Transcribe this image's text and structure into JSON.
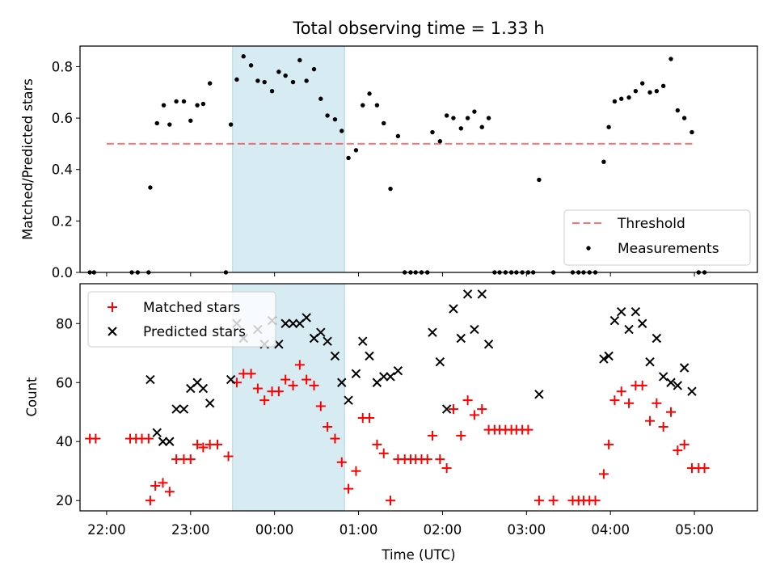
{
  "figure": {
    "title": "Total observing time = 1.33 h",
    "colors": {
      "highlight": "#add8e6",
      "threshold": "#ff0000",
      "measurements": "#000000",
      "matched": "#ff0000",
      "predicted": "#000000"
    }
  },
  "chart_data": [
    {
      "type": "scatter",
      "ylabel": "Matched/Predicted stars",
      "ylim": [
        0,
        0.88
      ],
      "yticks": [
        "0.0",
        "0.2",
        "0.4",
        "0.6",
        "0.8"
      ],
      "xlim": [
        -2.3167,
        5.75
      ],
      "highlight_x": [
        -0.5,
        0.8333
      ],
      "threshold": {
        "name": "Threshold",
        "y": 0.5,
        "x": [
          -2.0,
          5.0
        ]
      },
      "legend": {
        "position": "lower right",
        "entries": [
          "Threshold",
          "Measurements"
        ]
      },
      "series": [
        {
          "name": "Measurements",
          "marker": "dot",
          "points": [
            [
              -2.2,
              0
            ],
            [
              -2.15,
              0
            ],
            [
              -1.7,
              0
            ],
            [
              -1.63,
              0
            ],
            [
              -1.5,
              0
            ],
            [
              -1.48,
              0.33
            ],
            [
              -1.4,
              0.58
            ],
            [
              -1.32,
              0.65
            ],
            [
              -1.25,
              0.575
            ],
            [
              -1.17,
              0.665
            ],
            [
              -1.08,
              0.665
            ],
            [
              -1.0,
              0.59
            ],
            [
              -0.92,
              0.65
            ],
            [
              -0.85,
              0.655
            ],
            [
              -0.77,
              0.735
            ],
            [
              -0.58,
              0
            ],
            [
              -0.52,
              0.575
            ],
            [
              -0.45,
              0.75
            ],
            [
              -0.37,
              0.84
            ],
            [
              -0.28,
              0.805
            ],
            [
              -0.2,
              0.745
            ],
            [
              -0.12,
              0.74
            ],
            [
              -0.03,
              0.705
            ],
            [
              0.05,
              0.78
            ],
            [
              0.13,
              0.765
            ],
            [
              0.22,
              0.74
            ],
            [
              0.3,
              0.825
            ],
            [
              0.38,
              0.745
            ],
            [
              0.47,
              0.79
            ],
            [
              0.55,
              0.675
            ],
            [
              0.63,
              0.61
            ],
            [
              0.72,
              0.595
            ],
            [
              0.8,
              0.55
            ],
            [
              0.88,
              0.445
            ],
            [
              0.97,
              0.475
            ],
            [
              1.05,
              0.65
            ],
            [
              1.13,
              0.695
            ],
            [
              1.22,
              0.65
            ],
            [
              1.3,
              0.58
            ],
            [
              1.38,
              0.325
            ],
            [
              1.47,
              0.53
            ],
            [
              1.55,
              0
            ],
            [
              1.62,
              0
            ],
            [
              1.68,
              0
            ],
            [
              1.75,
              0
            ],
            [
              1.82,
              0
            ],
            [
              1.88,
              0.545
            ],
            [
              1.97,
              0.51
            ],
            [
              2.05,
              0.61
            ],
            [
              2.13,
              0.6
            ],
            [
              2.22,
              0.56
            ],
            [
              2.3,
              0.6
            ],
            [
              2.38,
              0.625
            ],
            [
              2.47,
              0.565
            ],
            [
              2.55,
              0.6
            ],
            [
              2.62,
              0
            ],
            [
              2.68,
              0
            ],
            [
              2.75,
              0
            ],
            [
              2.82,
              0
            ],
            [
              2.88,
              0
            ],
            [
              2.95,
              0
            ],
            [
              3.02,
              0
            ],
            [
              3.08,
              0
            ],
            [
              3.15,
              0.36
            ],
            [
              3.32,
              0
            ],
            [
              3.55,
              0
            ],
            [
              3.62,
              0
            ],
            [
              3.68,
              0
            ],
            [
              3.75,
              0
            ],
            [
              3.82,
              0
            ],
            [
              3.92,
              0.43
            ],
            [
              3.98,
              0.565
            ],
            [
              4.05,
              0.665
            ],
            [
              4.13,
              0.675
            ],
            [
              4.22,
              0.68
            ],
            [
              4.3,
              0.705
            ],
            [
              4.38,
              0.735
            ],
            [
              4.47,
              0.7
            ],
            [
              4.55,
              0.705
            ],
            [
              4.63,
              0.725
            ],
            [
              4.72,
              0.83
            ],
            [
              4.8,
              0.63
            ],
            [
              4.88,
              0.6
            ],
            [
              4.97,
              0.545
            ],
            [
              5.05,
              0
            ],
            [
              5.12,
              0
            ]
          ]
        }
      ]
    },
    {
      "type": "scatter",
      "xlabel": "Time (UTC)",
      "ylabel": "Count",
      "ylim": [
        16.5,
        93.5
      ],
      "yticks": [
        "20",
        "40",
        "60",
        "80"
      ],
      "xlim": [
        -2.3167,
        5.75
      ],
      "xticks": [
        "22:00",
        "23:00",
        "00:00",
        "01:00",
        "02:00",
        "03:00",
        "04:00",
        "05:00"
      ],
      "highlight_x": [
        -0.5,
        0.8333
      ],
      "legend": {
        "position": "upper left",
        "entries": [
          "Matched stars",
          "Predicted stars"
        ]
      },
      "series": [
        {
          "name": "Matched stars",
          "marker": "plus",
          "points": [
            [
              -2.2,
              41
            ],
            [
              -2.13,
              41
            ],
            [
              -1.72,
              41
            ],
            [
              -1.65,
              41
            ],
            [
              -1.58,
              41
            ],
            [
              -1.5,
              41
            ],
            [
              -1.48,
              20
            ],
            [
              -1.42,
              25
            ],
            [
              -1.33,
              26
            ],
            [
              -1.25,
              23
            ],
            [
              -1.17,
              34
            ],
            [
              -1.08,
              34
            ],
            [
              -1.0,
              34
            ],
            [
              -0.92,
              39
            ],
            [
              -0.85,
              38
            ],
            [
              -0.77,
              39
            ],
            [
              -0.68,
              39
            ],
            [
              -0.55,
              35
            ],
            [
              -0.45,
              60
            ],
            [
              -0.37,
              63
            ],
            [
              -0.28,
              63
            ],
            [
              -0.2,
              58
            ],
            [
              -0.12,
              54
            ],
            [
              -0.03,
              57
            ],
            [
              0.05,
              57
            ],
            [
              0.13,
              61
            ],
            [
              0.22,
              59
            ],
            [
              0.3,
              66
            ],
            [
              0.38,
              61
            ],
            [
              0.47,
              59
            ],
            [
              0.55,
              52
            ],
            [
              0.63,
              45
            ],
            [
              0.72,
              41
            ],
            [
              0.8,
              33
            ],
            [
              0.88,
              24
            ],
            [
              0.97,
              30
            ],
            [
              1.05,
              48
            ],
            [
              1.13,
              48
            ],
            [
              1.22,
              39
            ],
            [
              1.3,
              36
            ],
            [
              1.38,
              20
            ],
            [
              1.47,
              34
            ],
            [
              1.55,
              34
            ],
            [
              1.62,
              34
            ],
            [
              1.68,
              34
            ],
            [
              1.75,
              34
            ],
            [
              1.82,
              34
            ],
            [
              1.88,
              42
            ],
            [
              1.97,
              34
            ],
            [
              2.05,
              31
            ],
            [
              2.13,
              51
            ],
            [
              2.22,
              42
            ],
            [
              2.3,
              54
            ],
            [
              2.38,
              49
            ],
            [
              2.47,
              51
            ],
            [
              2.55,
              44
            ],
            [
              2.62,
              44
            ],
            [
              2.68,
              44
            ],
            [
              2.75,
              44
            ],
            [
              2.82,
              44
            ],
            [
              2.88,
              44
            ],
            [
              2.95,
              44
            ],
            [
              3.02,
              44
            ],
            [
              3.15,
              20
            ],
            [
              3.32,
              20
            ],
            [
              3.55,
              20
            ],
            [
              3.62,
              20
            ],
            [
              3.68,
              20
            ],
            [
              3.75,
              20
            ],
            [
              3.82,
              20
            ],
            [
              3.92,
              29
            ],
            [
              3.98,
              39
            ],
            [
              4.05,
              54
            ],
            [
              4.13,
              57
            ],
            [
              4.22,
              53
            ],
            [
              4.3,
              59
            ],
            [
              4.38,
              59
            ],
            [
              4.47,
              47
            ],
            [
              4.55,
              53
            ],
            [
              4.63,
              45
            ],
            [
              4.72,
              50
            ],
            [
              4.8,
              37
            ],
            [
              4.88,
              39
            ],
            [
              4.97,
              31
            ],
            [
              5.05,
              31
            ],
            [
              5.12,
              31
            ]
          ]
        },
        {
          "name": "Predicted stars",
          "marker": "cross",
          "points": [
            [
              -1.48,
              61
            ],
            [
              -1.4,
              43
            ],
            [
              -1.33,
              40
            ],
            [
              -1.25,
              40
            ],
            [
              -1.17,
              51
            ],
            [
              -1.08,
              51
            ],
            [
              -1.0,
              58
            ],
            [
              -0.92,
              60
            ],
            [
              -0.85,
              58
            ],
            [
              -0.77,
              53
            ],
            [
              -0.52,
              61
            ],
            [
              -0.45,
              80
            ],
            [
              -0.37,
              75
            ],
            [
              -0.2,
              78
            ],
            [
              -0.12,
              73
            ],
            [
              -0.03,
              81
            ],
            [
              0.05,
              73
            ],
            [
              0.13,
              80
            ],
            [
              0.22,
              80
            ],
            [
              0.3,
              80
            ],
            [
              0.38,
              82
            ],
            [
              0.47,
              75
            ],
            [
              0.55,
              77
            ],
            [
              0.63,
              74
            ],
            [
              0.72,
              69
            ],
            [
              0.8,
              60
            ],
            [
              0.88,
              54
            ],
            [
              0.97,
              63
            ],
            [
              1.05,
              74
            ],
            [
              1.13,
              69
            ],
            [
              1.22,
              60
            ],
            [
              1.3,
              62
            ],
            [
              1.38,
              62
            ],
            [
              1.47,
              64
            ],
            [
              1.88,
              77
            ],
            [
              1.97,
              67
            ],
            [
              2.05,
              51
            ],
            [
              2.13,
              85
            ],
            [
              2.22,
              75
            ],
            [
              2.3,
              90
            ],
            [
              2.38,
              78
            ],
            [
              2.47,
              90
            ],
            [
              2.55,
              73
            ],
            [
              3.15,
              56
            ],
            [
              3.92,
              68
            ],
            [
              3.98,
              69
            ],
            [
              4.05,
              81
            ],
            [
              4.13,
              84
            ],
            [
              4.22,
              78
            ],
            [
              4.3,
              84
            ],
            [
              4.38,
              80
            ],
            [
              4.47,
              67
            ],
            [
              4.55,
              75
            ],
            [
              4.63,
              62
            ],
            [
              4.72,
              60
            ],
            [
              4.8,
              59
            ],
            [
              4.88,
              65
            ],
            [
              4.97,
              57
            ]
          ]
        }
      ]
    }
  ]
}
